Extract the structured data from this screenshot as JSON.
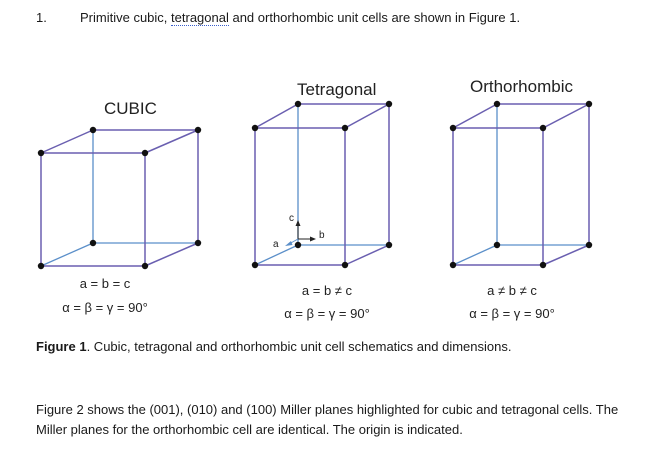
{
  "question": {
    "number": "1.",
    "text_before": "Primitive cubic, ",
    "text_underlined": "tetragonal",
    "text_after": " and orthorhombic unit cells are shown in Figure 1."
  },
  "figure": {
    "cells": [
      {
        "title": "CUBIC",
        "relation": "a = b = c",
        "angles": "α = β = γ = 90°"
      },
      {
        "title": "Tetragonal",
        "relation": "a = b ≠ c",
        "angles": "α = β = γ = 90°"
      },
      {
        "title": "Orthorhombic",
        "relation": "a ≠ b ≠ c",
        "angles": "α = β = γ = 90°"
      }
    ],
    "axis_labels": {
      "a": "a",
      "b": "b",
      "c": "c"
    },
    "colors": {
      "back_edges": "#5b8fc9",
      "front_edges": "#6a5fb0",
      "corner_dot": "#111111"
    }
  },
  "caption": {
    "label": "Figure 1",
    "text": ". Cubic, tetragonal and orthorhombic unit cell schematics and dimensions."
  },
  "paragraph": "Figure 2 shows the (001), (010) and (100) Miller planes highlighted for cubic and tetragonal cells. The Miller planes for the orthorhombic cell are identical. The origin is indicated."
}
